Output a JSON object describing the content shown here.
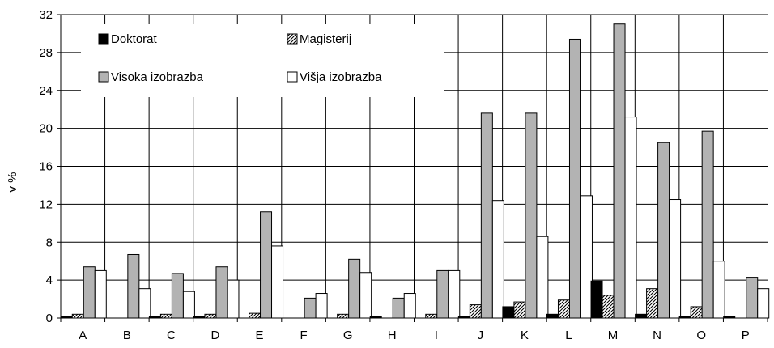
{
  "chart_data": {
    "type": "bar",
    "title": "",
    "xlabel": "",
    "ylabel": "v %",
    "ylim": [
      0,
      32
    ],
    "yticks": [
      0,
      4,
      8,
      12,
      16,
      20,
      24,
      28,
      32
    ],
    "grid": true,
    "legend_position": "top-left",
    "categories": [
      "A",
      "B",
      "C",
      "D",
      "E",
      "F",
      "G",
      "H",
      "I",
      "J",
      "K",
      "L",
      "M",
      "N",
      "O",
      "P"
    ],
    "series": [
      {
        "name": "Doktorat",
        "color": "#000000",
        "pattern": "solid",
        "values": [
          0.2,
          0,
          0.2,
          0.2,
          0,
          0,
          0,
          0.2,
          0,
          0.2,
          1.2,
          0.4,
          3.9,
          0.4,
          0.2,
          0.2
        ]
      },
      {
        "name": "Magisterij",
        "color": "#ffffff",
        "pattern": "hatch",
        "values": [
          0.4,
          0,
          0.4,
          0.4,
          0.5,
          0,
          0.4,
          0,
          0.4,
          1.4,
          1.7,
          1.9,
          2.4,
          3.1,
          1.2,
          0
        ]
      },
      {
        "name": "Visoka izobrazba",
        "color": "#b3b3b3",
        "pattern": "solid",
        "values": [
          5.4,
          6.7,
          4.7,
          5.4,
          11.2,
          2.1,
          6.2,
          2.1,
          5.0,
          21.6,
          21.6,
          29.4,
          31.0,
          18.5,
          19.7,
          4.3
        ]
      },
      {
        "name": "Višja izobrazba",
        "color": "#ffffff",
        "pattern": "solid",
        "values": [
          5.0,
          3.1,
          2.8,
          4.0,
          7.6,
          2.6,
          4.8,
          2.6,
          5.0,
          12.4,
          8.6,
          12.9,
          21.2,
          12.5,
          6.0,
          3.1
        ]
      }
    ]
  }
}
